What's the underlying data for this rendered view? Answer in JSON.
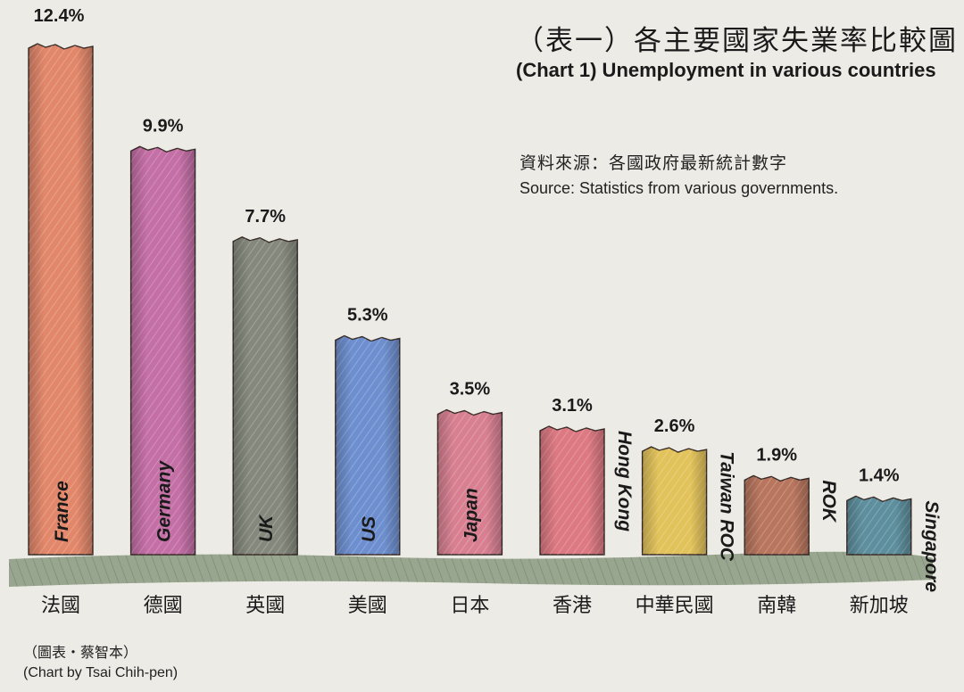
{
  "chart_data": {
    "type": "bar",
    "title": "（表一）各主要國家失業率比較圖",
    "subtitle": "(Chart 1) Unemployment in various countries",
    "source_zh": "資料來源：各國政府最新統計數字",
    "source_en": "Source: Statistics from various governments.",
    "credit_zh": "（圖表・蔡智本）",
    "credit_en": "(Chart by Tsai Chih-pen)",
    "unit": "%",
    "categories": [
      "France",
      "Germany",
      "UK",
      "US",
      "Japan",
      "Hong Kong",
      "Taiwan ROC",
      "ROK",
      "Singapore"
    ],
    "categories_zh": [
      "法國",
      "德國",
      "英國",
      "美國",
      "日本",
      "香港",
      "中華民國",
      "南韓",
      "新加坡"
    ],
    "values": [
      12.4,
      9.9,
      7.7,
      5.3,
      3.5,
      3.1,
      2.6,
      1.9,
      1.4
    ],
    "value_labels": [
      "12.4%",
      "9.9%",
      "7.7%",
      "5.3%",
      "3.5%",
      "3.1%",
      "2.6%",
      "1.9%",
      "1.4%"
    ],
    "ylim": [
      0,
      12.4
    ],
    "grid": false,
    "legend": "none",
    "colors": [
      "#e2876a",
      "#c46fa6",
      "#85897d",
      "#6e8fcf",
      "#d88092",
      "#dd7982",
      "#e2c25a",
      "#b9765e",
      "#5e8f9e"
    ]
  }
}
